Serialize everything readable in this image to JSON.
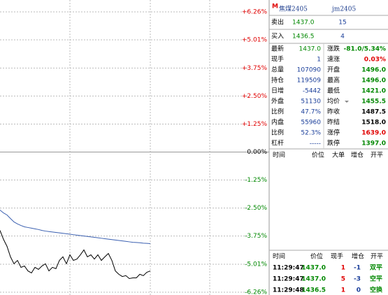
{
  "chart_data": {
    "type": "line",
    "ylim": [
      -6.26,
      6.26
    ],
    "xlim": [
      0,
      77
    ],
    "yticks": [
      {
        "value": 6.26,
        "label": "+6.26%"
      },
      {
        "value": 5.01,
        "label": "+5.01%"
      },
      {
        "value": 3.75,
        "label": "+3.75%"
      },
      {
        "value": 2.5,
        "label": "+2.50%"
      },
      {
        "value": 1.25,
        "label": "+1.25%"
      },
      {
        "value": 0,
        "label": "0.00%"
      },
      {
        "value": -1.25,
        "label": "-1.25%"
      },
      {
        "value": -2.5,
        "label": "-2.50%"
      },
      {
        "value": -3.75,
        "label": "-3.75%"
      },
      {
        "value": -5.01,
        "label": "-5.01%"
      },
      {
        "value": -6.26,
        "label": "-6.26%"
      }
    ],
    "grid": true,
    "series": [
      {
        "color": "#000000",
        "values": [
          -3.5,
          -3.9,
          -4.21,
          -4.68,
          -4.99,
          -4.84,
          -5.15,
          -5.09,
          -5.31,
          -5.4,
          -5.15,
          -5.24,
          -5.09,
          -4.99,
          -5.31,
          -5.15,
          -5.21,
          -4.84,
          -4.68,
          -4.99,
          -4.59,
          -4.84,
          -4.78,
          -4.59,
          -4.37,
          -4.68,
          -4.59,
          -4.78,
          -4.59,
          -4.84,
          -4.68,
          -4.53,
          -4.84,
          -5.31,
          -5.46,
          -5.56,
          -5.52,
          -5.65,
          -5.62,
          -5.62,
          -5.46,
          -5.52,
          -5.37,
          -5.31
        ]
      },
      {
        "color": "#3a5fb0",
        "values": [
          -2.59,
          -2.72,
          -2.81,
          -2.97,
          -3.12,
          -3.21,
          -3.28,
          -3.34,
          -3.37,
          -3.4,
          -3.43,
          -3.46,
          -3.5,
          -3.53,
          -3.55,
          -3.57,
          -3.59,
          -3.61,
          -3.63,
          -3.65,
          -3.67,
          -3.69,
          -3.71,
          -3.73,
          -3.75,
          -3.77,
          -3.79,
          -3.81,
          -3.83,
          -3.85,
          -3.87,
          -3.89,
          -3.91,
          -3.93,
          -3.95,
          -3.97,
          -3.99,
          -4.01,
          -4.03,
          -4.04,
          -4.05,
          -4.07,
          -4.08,
          -4.09
        ]
      }
    ]
  },
  "quote": {
    "flag": "M",
    "name": "焦煤2405",
    "code": "jm2405",
    "sell": {
      "label": "卖出",
      "price": "1437.0",
      "qty": "15"
    },
    "buy": {
      "label": "买入",
      "price": "1436.5",
      "qty": "4"
    }
  },
  "stats": [
    {
      "l1": "最新",
      "v1": "1437.0",
      "c1": "#008800",
      "l2": "涨跌",
      "v2": "-81.0/5.34%",
      "c2": "#008800"
    },
    {
      "l1": "现手",
      "v1": "1",
      "c1": "#1a3e9a",
      "l2": "速涨",
      "v2": "0.03%",
      "c2": "#e00000"
    },
    {
      "l1": "总量",
      "v1": "107090",
      "c1": "#1a3e9a",
      "l2": "开盘",
      "v2": "1496.0",
      "c2": "#008800"
    },
    {
      "l1": "持仓",
      "v1": "119509",
      "c1": "#1a3e9a",
      "l2": "最高",
      "v2": "1496.0",
      "c2": "#008800"
    },
    {
      "l1": "日增",
      "v1": "-5442",
      "c1": "#1a3e9a",
      "l2": "最低",
      "v2": "1421.0",
      "c2": "#008800"
    },
    {
      "l1": "外盘",
      "v1": "51130",
      "c1": "#1a3e9a",
      "l2": "均价",
      "v2": "1455.5",
      "c2": "#008800"
    },
    {
      "l1": "比例",
      "v1": "47.7%",
      "c1": "#1a3e9a",
      "l2": "昨收",
      "v2": "1487.5",
      "c2": "#000000"
    },
    {
      "l1": "内盘",
      "v1": "55960",
      "c1": "#1a3e9a",
      "l2": "昨结",
      "v2": "1518.0",
      "c2": "#000000"
    },
    {
      "l1": "比例",
      "v1": "52.3%",
      "c1": "#1a3e9a",
      "l2": "涨停",
      "v2": "1639.0",
      "c2": "#e00000"
    },
    {
      "l1": "杠杆",
      "v1": "-----",
      "c1": "#1a3e9a",
      "l2": "跌停",
      "v2": "1397.0",
      "c2": "#008800"
    }
  ],
  "big_orders": {
    "headers": [
      "时间",
      "价位",
      "大单",
      "增仓",
      "开平"
    ]
  },
  "ticks": {
    "headers": [
      "时间",
      "价位",
      "现手",
      "增仓",
      "开平"
    ],
    "rows": [
      {
        "cells": [
          "11:29:47",
          "1437.0",
          "1",
          "-1",
          "双平"
        ],
        "colors": [
          "#000000",
          "#008800",
          "#e00000",
          "#1a3e9a",
          "#008800"
        ]
      },
      {
        "cells": [
          "11:29:47",
          "1437.0",
          "5",
          "-3",
          "空平"
        ],
        "colors": [
          "#000000",
          "#008800",
          "#e00000",
          "#1a3e9a",
          "#008800"
        ]
      },
      {
        "cells": [
          "11:29:48",
          "1436.5",
          "1",
          "0",
          "空换"
        ],
        "colors": [
          "#000000",
          "#008800",
          "#e00000",
          "#1a3e9a",
          "#008800"
        ]
      }
    ]
  }
}
